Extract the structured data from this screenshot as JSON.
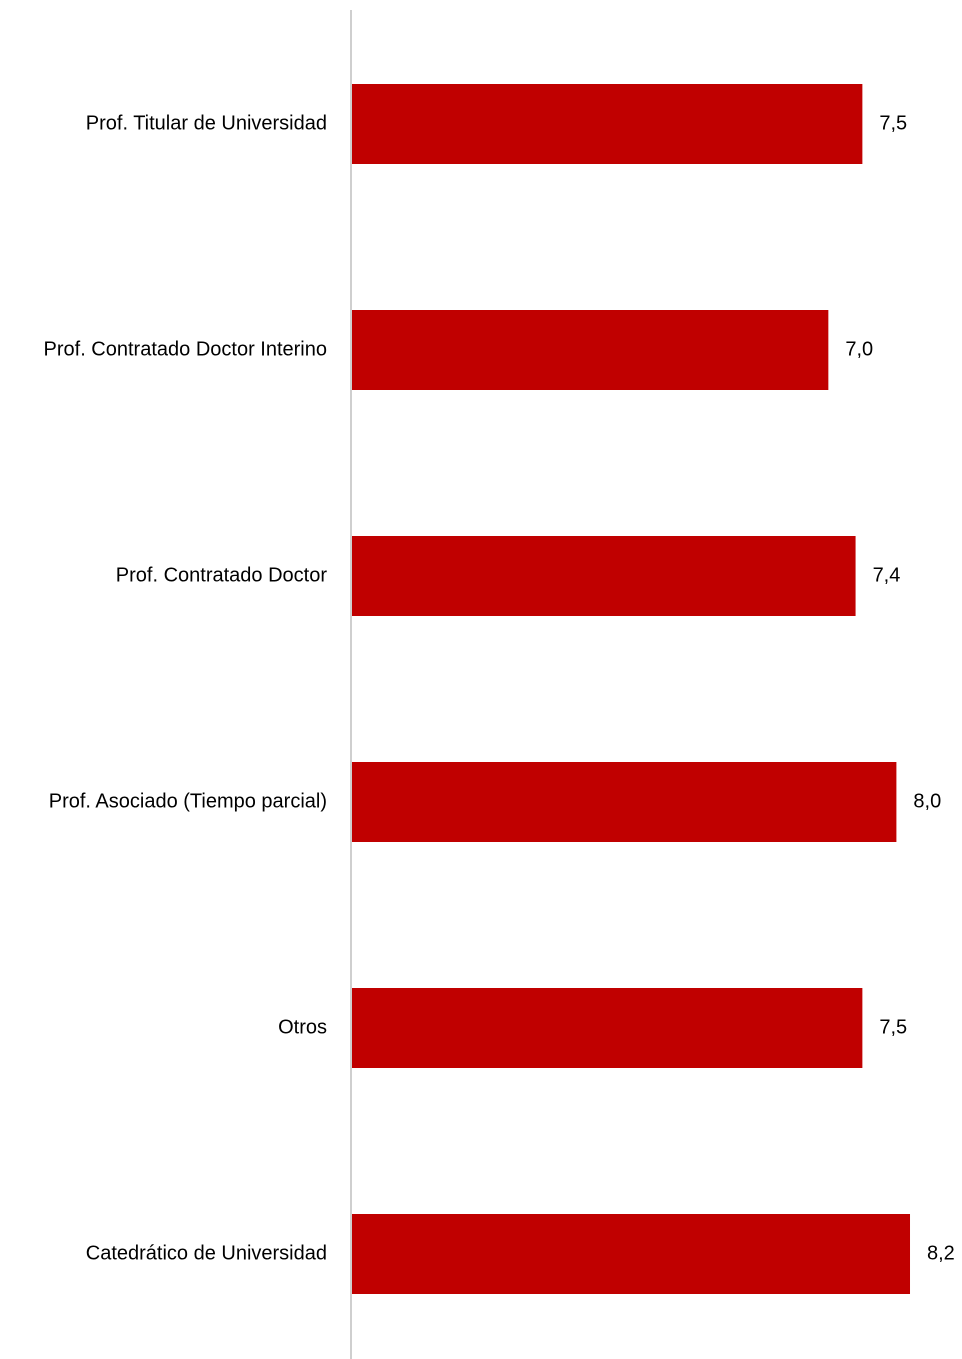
{
  "chart_data": {
    "type": "bar",
    "orientation": "horizontal",
    "categories": [
      "Prof. Titular de Universidad",
      "Prof. Contratado Doctor Interino",
      "Prof. Contratado Doctor",
      "Prof. Asociado (Tiempo parcial)",
      "Otros",
      "Catedrático de Universidad"
    ],
    "values": [
      7.5,
      7.0,
      7.4,
      8.0,
      7.5,
      8.2
    ],
    "value_labels": [
      "7,5",
      "7,0",
      "7,4",
      "8,0",
      "7,5",
      "8,2"
    ],
    "xlim": [
      0,
      8.2
    ],
    "grid": false,
    "legend": "none",
    "colors": {
      "bar": "#c00000",
      "axis": "#bfbfbf",
      "text": "#000000"
    }
  }
}
